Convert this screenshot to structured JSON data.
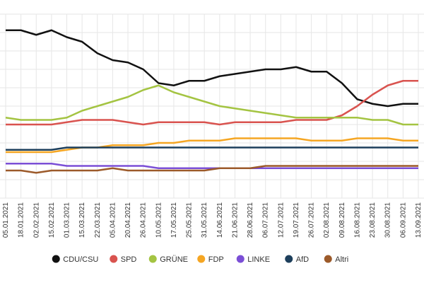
{
  "chart_data": {
    "type": "line",
    "title": "",
    "xlabel": "",
    "ylabel": "",
    "grid": true,
    "legend_position": "bottom",
    "ylim": [
      0,
      40
    ],
    "x_dates": [
      "05.01.2021",
      "18.01.2021",
      "02.02.2021",
      "15.02.2021",
      "01.03.2021",
      "15.03.2021",
      "22.03.2021",
      "05.04.2021",
      "20.04.2021",
      "26.04.2021",
      "10.05.2021",
      "17.05.2021",
      "25.05.2021",
      "31.05.2021",
      "14.06.2021",
      "21.06.2021",
      "28.06.2021",
      "06.07.2021",
      "12.07.2021",
      "19.07.2021",
      "26.07.2021",
      "02.08.2021",
      "09.08.2021",
      "16.08.2021",
      "23.08.2021",
      "30.08.2021",
      "06.09.2021",
      "13.09.2021"
    ],
    "tick_labels": [
      "05.01.2021",
      "18.01.2021",
      "02.02.2021",
      "15.02.2021",
      "01.03.2021",
      "15.03.2021",
      "22.03.2021",
      "05.04.2021",
      "20.04.2021",
      "26.04.2021",
      "10.05.2021",
      "17.05.2021",
      "25.05.2021",
      "31.05.2021",
      "14.06.2021",
      "21.06.2021",
      "28.06.2021",
      "06.07.2021",
      "12.07.2021",
      "19.07.2021",
      "26.07.2021",
      "02.08.2021",
      "09.08.2021",
      "16.08.2021",
      "23.08.2021",
      "30.08.2021",
      "06.09.2021",
      "13.09.2021"
    ],
    "series": [
      {
        "name": "CDU/CSU",
        "color": "#111111",
        "values": [
          36.5,
          36.5,
          35.5,
          36.5,
          35,
          34,
          31.5,
          30,
          29.5,
          28,
          25,
          24.5,
          25.5,
          25.5,
          26.5,
          27,
          27.5,
          28,
          28,
          28.5,
          27.5,
          27.5,
          25,
          21.5,
          20.5,
          20,
          20.5,
          20.5
        ]
      },
      {
        "name": "SPD",
        "color": "#d9534f",
        "values": [
          16,
          16,
          16,
          16,
          16.5,
          17,
          17,
          17,
          16.5,
          16,
          16.5,
          16.5,
          16.5,
          16.5,
          16,
          16.5,
          16.5,
          16.5,
          16.5,
          17,
          17,
          17,
          18,
          20,
          22.5,
          24.5,
          25.5,
          25.5
        ]
      },
      {
        "name": "GRÜNE",
        "color": "#a4c442",
        "values": [
          17.5,
          17,
          17,
          17,
          17.5,
          19,
          20,
          21,
          22,
          23.5,
          24.5,
          23,
          22,
          21,
          20,
          19.5,
          19,
          18.5,
          18,
          17.5,
          17.5,
          17.5,
          17.5,
          17.5,
          17,
          17,
          16,
          16
        ]
      },
      {
        "name": "FDP",
        "color": "#f5a623",
        "values": [
          10,
          10,
          10,
          10,
          10.5,
          11,
          11,
          11.5,
          11.5,
          11.5,
          12,
          12,
          12.5,
          12.5,
          12.5,
          13,
          13,
          13,
          13,
          13,
          12.5,
          12.5,
          12.5,
          13,
          13,
          13,
          12.5,
          12.5
        ]
      },
      {
        "name": "LINKE",
        "color": "#7b4fd6",
        "values": [
          7.5,
          7.5,
          7.5,
          7.5,
          7,
          7,
          7,
          7,
          7,
          7,
          6.5,
          6.5,
          6.5,
          6.5,
          6.5,
          6.5,
          6.5,
          6.5,
          6.5,
          6.5,
          6.5,
          6.5,
          6.5,
          6.5,
          6.5,
          6.5,
          6.5,
          6.5
        ]
      },
      {
        "name": "AfD",
        "color": "#1d3f5c",
        "values": [
          10.5,
          10.5,
          10.5,
          10.5,
          11,
          11,
          11,
          11,
          11,
          11,
          11,
          11,
          11,
          11,
          11,
          11,
          11,
          11,
          11,
          11,
          11,
          11,
          11,
          11,
          11,
          11,
          11,
          11
        ]
      },
      {
        "name": "Altri",
        "color": "#9c5a2a",
        "values": [
          6,
          6,
          5.5,
          6,
          6,
          6,
          6,
          6.5,
          6,
          6,
          6,
          6,
          6,
          6,
          6.5,
          6.5,
          6.5,
          7,
          7,
          7,
          7,
          7,
          7,
          7,
          7,
          7,
          7,
          7
        ]
      }
    ]
  }
}
